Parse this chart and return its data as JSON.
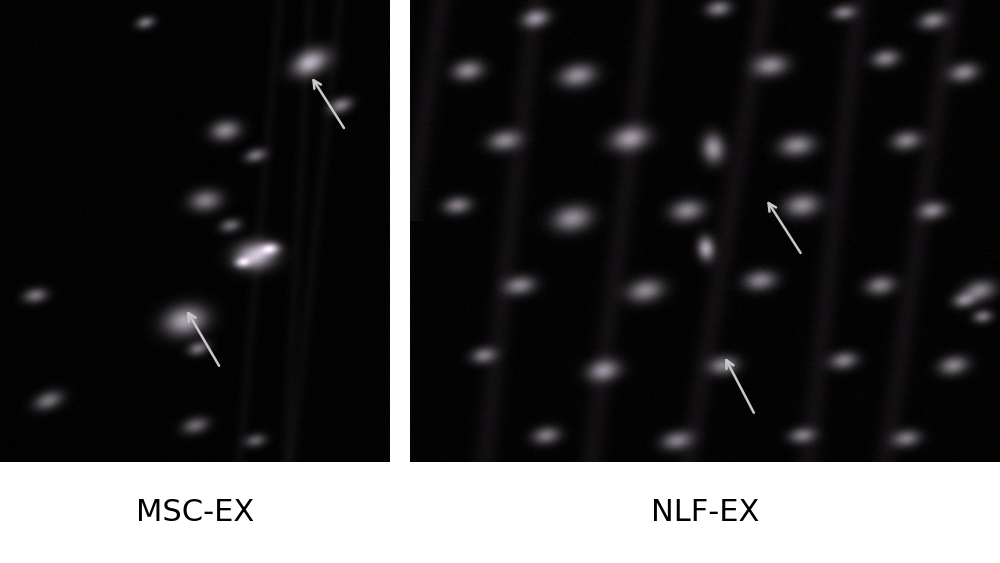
{
  "title_left": "MSC-EX",
  "title_right": "NLF-EX",
  "title_fontsize": 22,
  "bg_color": "#ffffff",
  "fig_width": 10.0,
  "fig_height": 5.63,
  "arrow_color": "#c8c8c8"
}
